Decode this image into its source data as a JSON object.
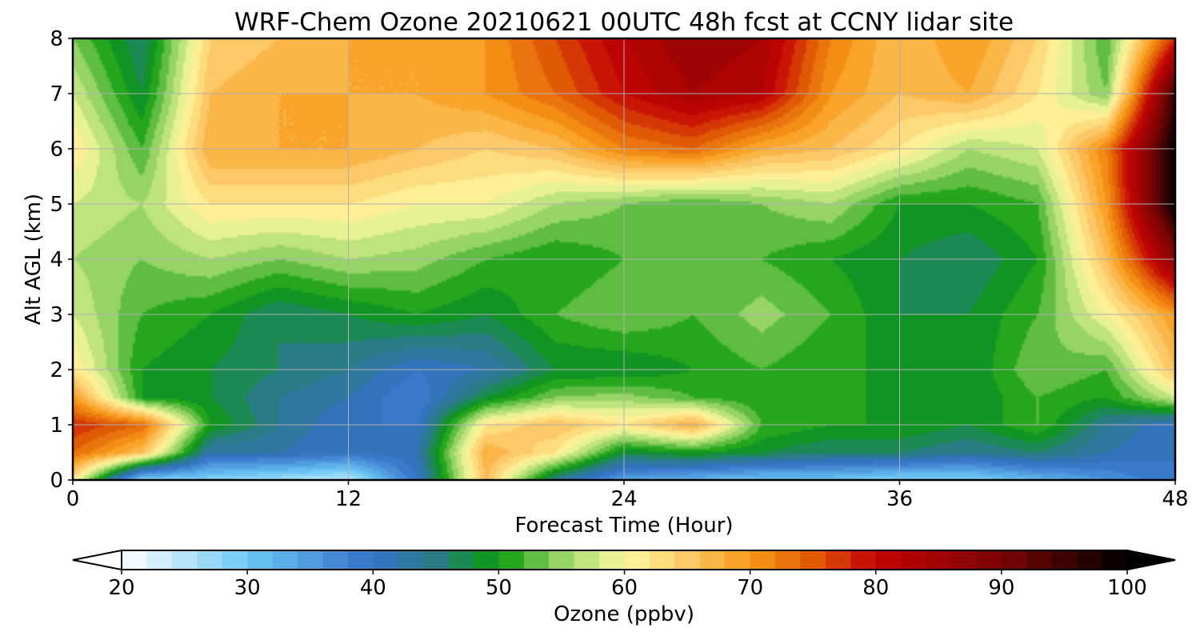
{
  "chart_data": {
    "type": "heatmap",
    "title": "WRF-Chem Ozone  20210621 00UTC 48h fcst at CCNY lidar site",
    "xlabel": "Forecast Time (Hour)",
    "ylabel": "Alt AGL (km)",
    "xlim": [
      0,
      48
    ],
    "ylim": [
      0,
      8
    ],
    "x_ticks": [
      0,
      12,
      24,
      36,
      48
    ],
    "y_ticks": [
      0,
      1,
      2,
      3,
      4,
      5,
      6,
      7,
      8
    ],
    "grid": true,
    "x": [
      0,
      3,
      6,
      9,
      12,
      15,
      18,
      21,
      24,
      27,
      30,
      33,
      36,
      39,
      42,
      45,
      48
    ],
    "y": [
      0,
      0.5,
      1,
      1.5,
      2,
      3,
      4,
      5,
      6,
      7,
      8
    ],
    "z": [
      [
        62,
        28,
        28,
        26,
        24,
        40,
        66,
        44,
        34,
        32,
        30,
        30,
        28,
        28,
        32,
        36,
        40
      ],
      [
        74,
        66,
        42,
        42,
        40,
        42,
        68,
        62,
        48,
        50,
        48,
        46,
        46,
        44,
        46,
        42,
        40
      ],
      [
        78,
        74,
        50,
        44,
        40,
        40,
        62,
        66,
        62,
        68,
        52,
        50,
        50,
        48,
        52,
        44,
        40
      ],
      [
        70,
        50,
        48,
        44,
        42,
        38,
        48,
        54,
        55,
        52,
        50,
        52,
        48,
        48,
        52,
        50,
        58
      ],
      [
        62,
        50,
        48,
        46,
        44,
        40,
        42,
        48,
        48,
        50,
        52,
        50,
        50,
        48,
        54,
        52,
        66
      ],
      [
        58,
        52,
        50,
        46,
        48,
        50,
        48,
        52,
        54,
        52,
        55,
        52,
        48,
        48,
        52,
        60,
        70
      ],
      [
        56,
        54,
        56,
        54,
        56,
        55,
        52,
        50,
        52,
        52,
        52,
        50,
        48,
        46,
        50,
        66,
        88
      ],
      [
        58,
        56,
        62,
        62,
        62,
        60,
        60,
        56,
        54,
        52,
        54,
        56,
        50,
        50,
        52,
        70,
        100
      ],
      [
        62,
        52,
        68,
        68,
        68,
        66,
        64,
        66,
        72,
        74,
        68,
        66,
        62,
        56,
        58,
        72,
        100
      ],
      [
        58,
        48,
        66,
        68,
        68,
        68,
        70,
        74,
        80,
        84,
        82,
        70,
        66,
        68,
        62,
        54,
        96
      ],
      [
        54,
        46,
        64,
        66,
        68,
        68,
        70,
        76,
        82,
        86,
        84,
        72,
        66,
        70,
        64,
        52,
        78
      ]
    ],
    "colorbar": {
      "label": "Ozone  (ppbv)",
      "min": 20,
      "max": 100,
      "ticks": [
        20,
        30,
        40,
        50,
        60,
        70,
        80,
        90,
        100
      ],
      "extend": "both",
      "stops": [
        {
          "v": 20,
          "c": "#ffffff"
        },
        {
          "v": 30,
          "c": "#6cc8f5"
        },
        {
          "v": 40,
          "c": "#3570c8"
        },
        {
          "v": 45,
          "c": "#2a7d86"
        },
        {
          "v": 50,
          "c": "#0a9a0a"
        },
        {
          "v": 55,
          "c": "#96d468"
        },
        {
          "v": 60,
          "c": "#fdf9a0"
        },
        {
          "v": 65,
          "c": "#fdc868"
        },
        {
          "v": 70,
          "c": "#f89a18"
        },
        {
          "v": 75,
          "c": "#e05a06"
        },
        {
          "v": 80,
          "c": "#c40404"
        },
        {
          "v": 90,
          "c": "#7a0404"
        },
        {
          "v": 100,
          "c": "#000000"
        }
      ]
    }
  }
}
